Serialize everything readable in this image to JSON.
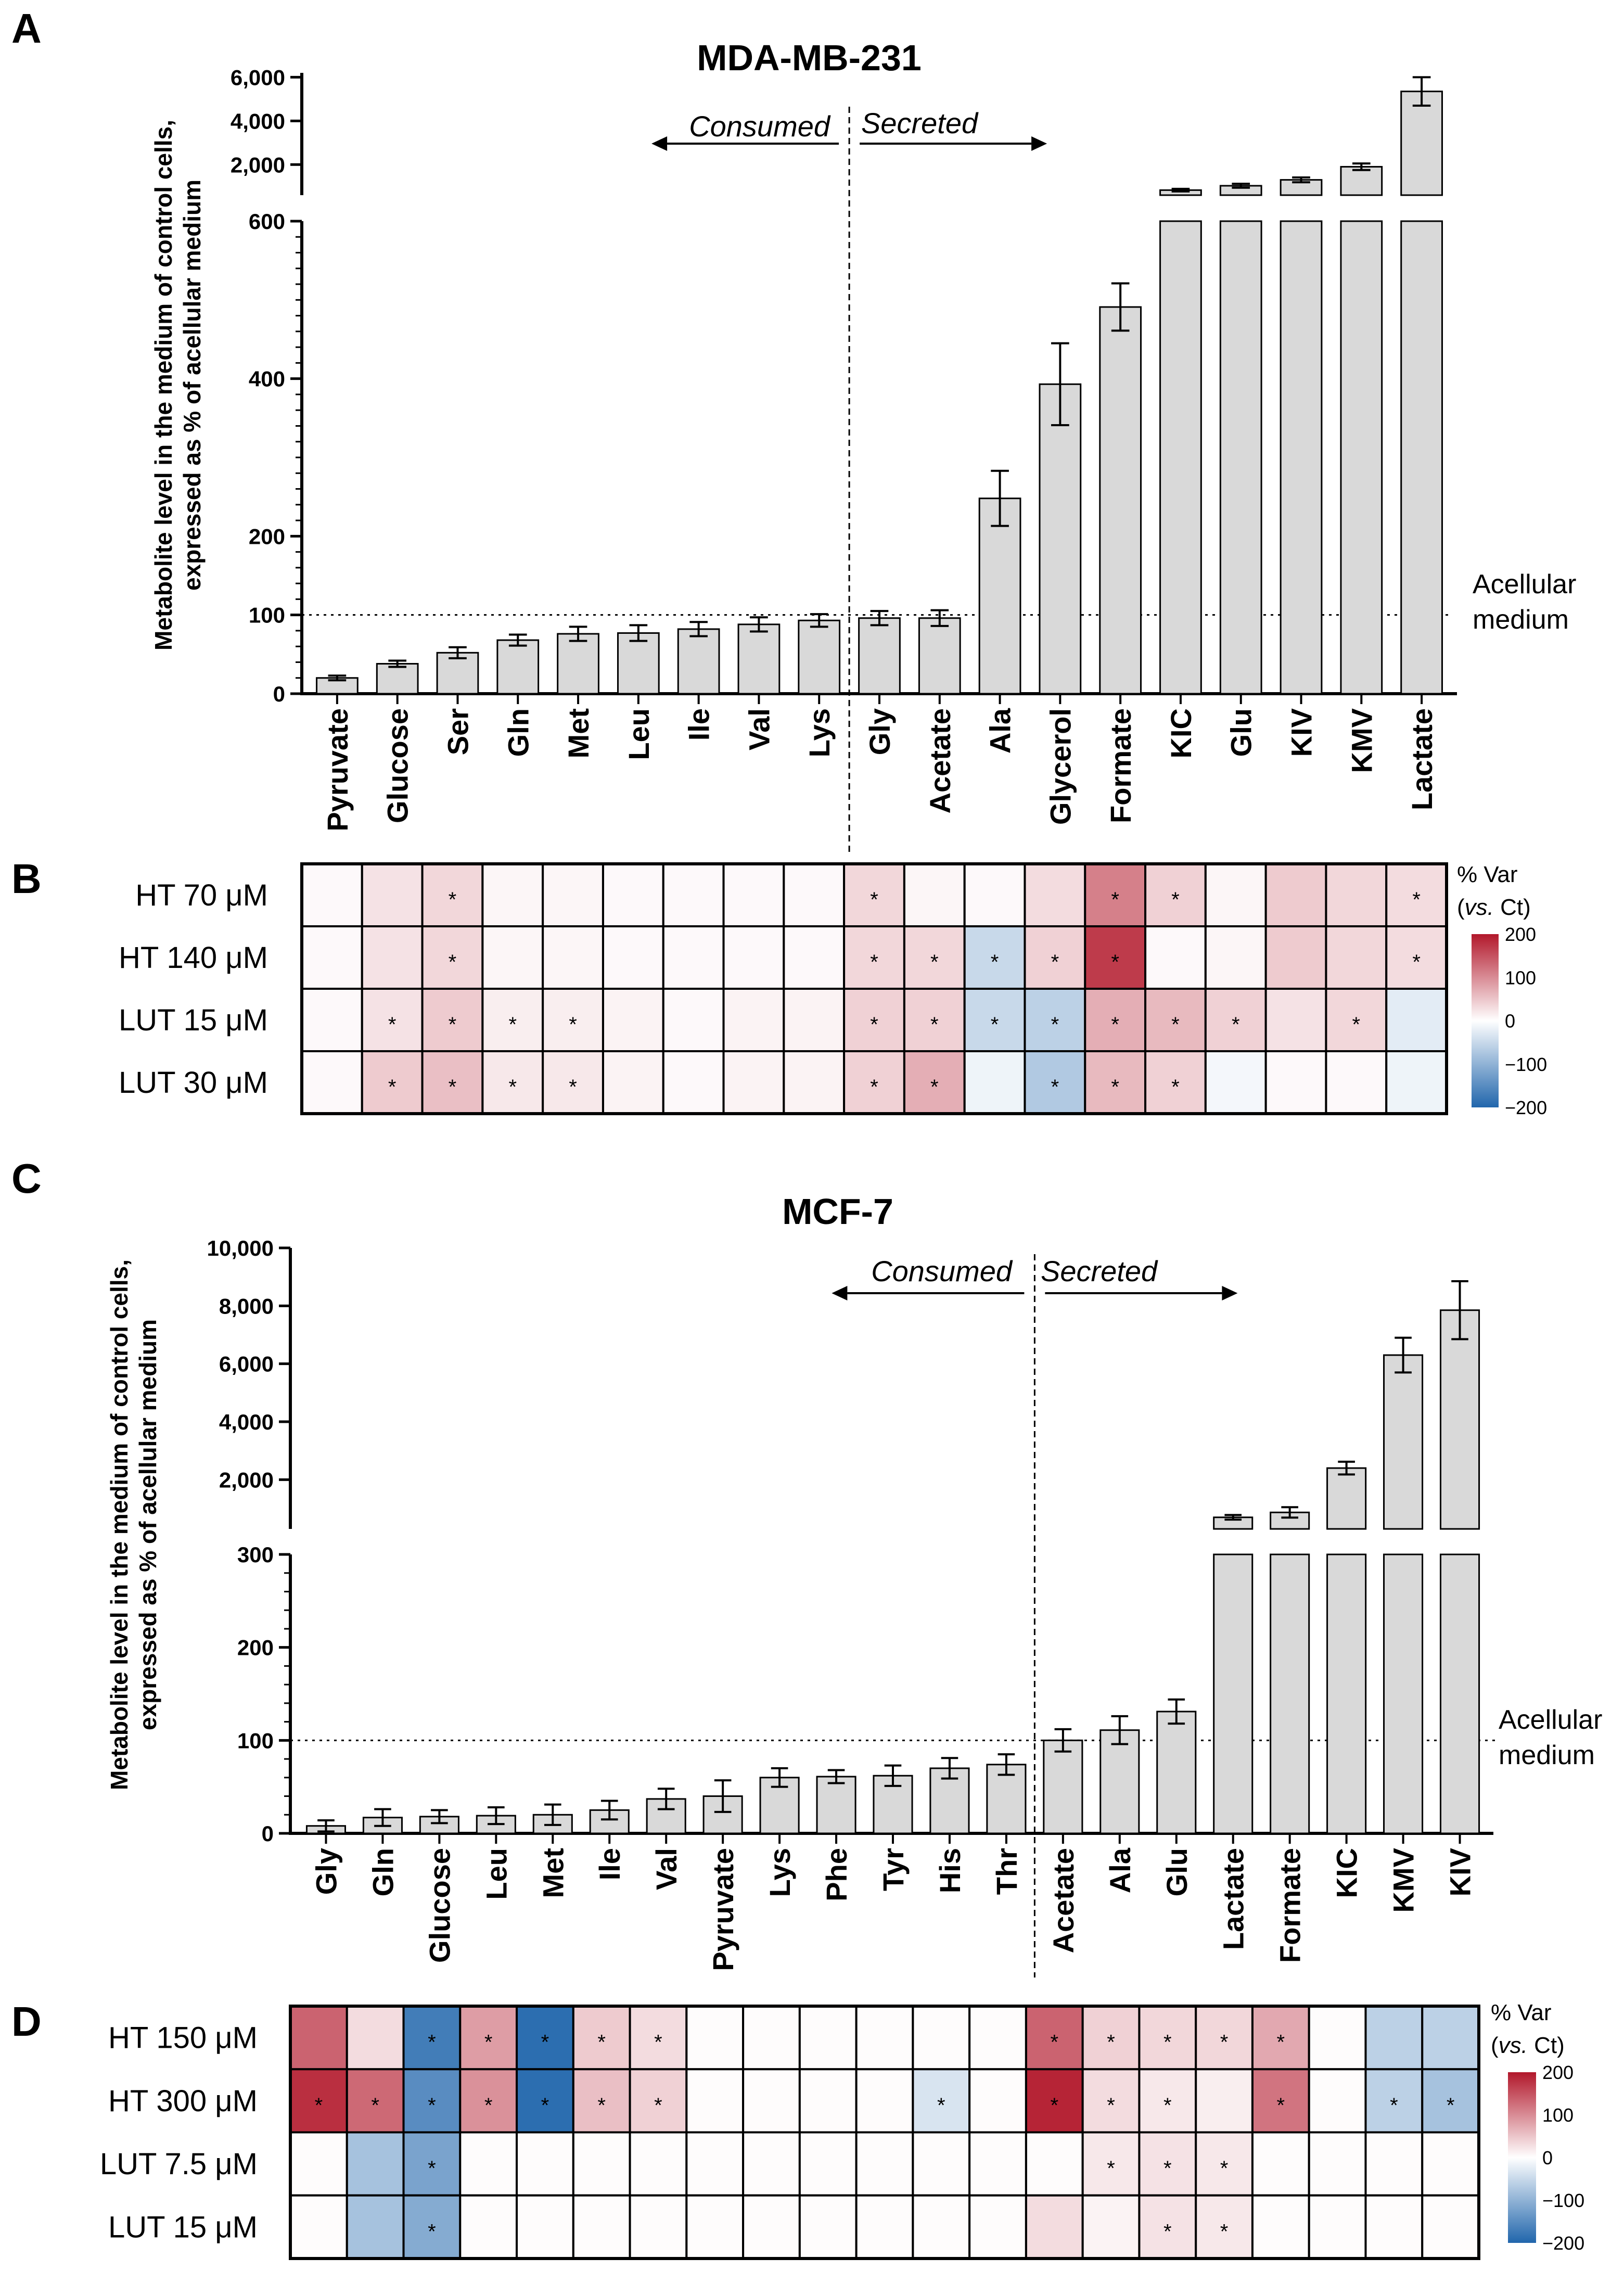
{
  "panel_labels": [
    "A",
    "B",
    "C",
    "D"
  ],
  "annotations": {
    "consumed": "Consumed",
    "secreted": "Secreted",
    "acellular_line1": "Acellular",
    "acellular_line2": "medium"
  },
  "heatmap_legend": {
    "title_line1": "% Var",
    "title_line2_italic": "vs.",
    "title_line2_rest": " Ct)",
    "title_line2_open": "(",
    "ticks": [
      "200",
      "100",
      "0",
      "−100",
      "−200"
    ],
    "tick_values": [
      200,
      100,
      0,
      -100,
      -200
    ],
    "color_high": "#b2182b",
    "color_mid": "#ffffff",
    "color_low": "#2166ac"
  },
  "chart_data": [
    {
      "type": "bar",
      "title": "MDA-MB-231",
      "ylabel_line1": "Metabolite level in the medium of control cells,",
      "ylabel_line2": "expressed as % of acellular medium",
      "categories": [
        "Pyruvate",
        "Glucose",
        "Ser",
        "Gln",
        "Met",
        "Leu",
        "Ile",
        "Val",
        "Lys",
        "Gly",
        "Acetate",
        "Ala",
        "Glycerol",
        "Formate",
        "KIC",
        "Glu",
        "KIV",
        "KMV",
        "Lactate"
      ],
      "values": [
        20,
        38,
        52,
        68,
        76,
        77,
        82,
        88,
        93,
        96,
        96,
        248,
        393,
        491,
        830,
        1030,
        1300,
        1900,
        5350
      ],
      "errors": [
        3,
        4,
        7,
        7,
        9,
        10,
        9,
        9,
        8,
        9,
        10,
        35,
        52,
        30,
        60,
        90,
        110,
        150,
        650
      ],
      "lower_axis": {
        "ylim": [
          0,
          600
        ],
        "ticks": [
          0,
          100,
          200,
          400,
          600
        ],
        "tick_labels": [
          "0",
          "100",
          "200",
          "400",
          "600"
        ]
      },
      "upper_axis": {
        "ylim": [
          600,
          6200
        ],
        "ticks": [
          2000,
          4000,
          6000
        ],
        "tick_labels": [
          "2,000",
          "4,000",
          "6,000"
        ]
      },
      "reference_line": 100,
      "consumed_secreted_divider_after": "Lys",
      "bar_color": "#d9d9d9"
    },
    {
      "type": "heatmap",
      "row_labels": [
        "HT 70 μM",
        "HT 140 μM",
        "LUT 15 μM",
        "LUT 30 μM"
      ],
      "columns": [
        "Pyruvate",
        "Glucose",
        "Ser",
        "Gln",
        "Met",
        "Leu",
        "Ile",
        "Val",
        "Lys",
        "Gly",
        "Acetate",
        "Ala",
        "Glycerol",
        "Formate",
        "KIC",
        "Glu",
        "KIV",
        "KMV",
        "Lactate"
      ],
      "values": [
        [
          5,
          25,
          35,
          8,
          8,
          5,
          5,
          5,
          5,
          35,
          8,
          5,
          30,
          110,
          40,
          8,
          45,
          35,
          30
        ],
        [
          5,
          25,
          35,
          8,
          8,
          5,
          5,
          5,
          5,
          35,
          35,
          -50,
          40,
          170,
          5,
          8,
          45,
          35,
          30
        ],
        [
          5,
          25,
          45,
          15,
          15,
          10,
          5,
          10,
          10,
          40,
          40,
          -50,
          -60,
          70,
          60,
          40,
          25,
          35,
          -25
        ],
        [
          5,
          45,
          55,
          20,
          20,
          10,
          5,
          10,
          10,
          40,
          70,
          -15,
          -70,
          60,
          40,
          -10,
          5,
          5,
          -15
        ]
      ],
      "significant": [
        [
          false,
          false,
          true,
          false,
          false,
          false,
          false,
          false,
          false,
          true,
          false,
          false,
          false,
          true,
          true,
          false,
          false,
          false,
          true
        ],
        [
          false,
          false,
          true,
          false,
          false,
          false,
          false,
          false,
          false,
          true,
          true,
          true,
          true,
          true,
          false,
          false,
          false,
          false,
          true
        ],
        [
          false,
          true,
          true,
          true,
          true,
          false,
          false,
          false,
          false,
          true,
          true,
          true,
          true,
          true,
          true,
          true,
          false,
          true,
          false
        ],
        [
          false,
          true,
          true,
          true,
          true,
          false,
          false,
          false,
          false,
          true,
          true,
          false,
          true,
          true,
          true,
          false,
          false,
          false,
          false
        ]
      ],
      "star_symbol": "*"
    },
    {
      "type": "bar",
      "title": "MCF-7",
      "ylabel_line1": "Metabolite level in the medium of control cells,",
      "ylabel_line2": "expressed as % of acellular medium",
      "categories": [
        "Gly",
        "Gln",
        "Glucose",
        "Leu",
        "Met",
        "Ile",
        "Val",
        "Pyruvate",
        "Lys",
        "Phe",
        "Tyr",
        "His",
        "Thr",
        "Acetate",
        "Ala",
        "Glu",
        "Lactate",
        "Formate",
        "KIC",
        "KMV",
        "KIV"
      ],
      "values": [
        8,
        17,
        18,
        19,
        20,
        25,
        37,
        40,
        60,
        61,
        62,
        70,
        74,
        100,
        111,
        131,
        700,
        870,
        2400,
        6300,
        7850
      ],
      "errors": [
        6,
        9,
        7,
        9,
        11,
        10,
        11,
        17,
        10,
        7,
        11,
        11,
        11,
        12,
        15,
        13,
        80,
        180,
        220,
        600,
        1000
      ],
      "lower_axis": {
        "ylim": [
          0,
          300
        ],
        "ticks": [
          0,
          100,
          200,
          300
        ],
        "tick_labels": [
          "0",
          "100",
          "200",
          "300"
        ]
      },
      "upper_axis": {
        "ylim": [
          300,
          10000
        ],
        "ticks": [
          2000,
          4000,
          6000,
          8000,
          10000
        ],
        "tick_labels": [
          "2,000",
          "4,000",
          "6,000",
          "8,000",
          "10,000"
        ]
      },
      "reference_line": 100,
      "consumed_secreted_divider_after": "Thr",
      "bar_color": "#d9d9d9"
    },
    {
      "type": "heatmap",
      "row_labels": [
        "HT 150 μM",
        "HT 300 μM",
        "LUT 7.5 μM",
        "LUT 15 μM"
      ],
      "columns": [
        "Gly",
        "Gln",
        "Glucose",
        "Leu",
        "Met",
        "Ile",
        "Val",
        "Pyruvate",
        "Lys",
        "Phe",
        "Tyr",
        "His",
        "Thr",
        "Acetate",
        "Ala",
        "Glu",
        "Lactate",
        "Formate",
        "KIC",
        "KMV",
        "KIV"
      ],
      "values": [
        [
          135,
          30,
          -170,
          85,
          -190,
          45,
          30,
          3,
          3,
          3,
          3,
          3,
          3,
          135,
          40,
          35,
          35,
          75,
          3,
          -60,
          -60
        ],
        [
          180,
          130,
          -150,
          95,
          -190,
          55,
          40,
          3,
          3,
          3,
          3,
          -35,
          3,
          190,
          30,
          20,
          15,
          120,
          3,
          -60,
          -80
        ],
        [
          3,
          -80,
          -120,
          3,
          3,
          3,
          3,
          3,
          3,
          3,
          3,
          3,
          3,
          3,
          20,
          25,
          20,
          3,
          3,
          3,
          3
        ],
        [
          3,
          -80,
          -110,
          3,
          3,
          3,
          3,
          3,
          3,
          3,
          3,
          3,
          3,
          30,
          10,
          25,
          20,
          3,
          3,
          3,
          3
        ]
      ],
      "significant": [
        [
          false,
          false,
          true,
          true,
          true,
          true,
          true,
          false,
          false,
          false,
          false,
          false,
          false,
          true,
          true,
          true,
          true,
          true,
          false,
          false,
          false
        ],
        [
          true,
          true,
          true,
          true,
          true,
          true,
          true,
          false,
          false,
          false,
          false,
          true,
          false,
          true,
          true,
          true,
          false,
          true,
          false,
          true,
          true
        ],
        [
          false,
          false,
          true,
          false,
          false,
          false,
          false,
          false,
          false,
          false,
          false,
          false,
          false,
          false,
          true,
          true,
          true,
          false,
          false,
          false,
          false
        ],
        [
          false,
          false,
          true,
          false,
          false,
          false,
          false,
          false,
          false,
          false,
          false,
          false,
          false,
          false,
          false,
          true,
          true,
          false,
          false,
          false,
          false
        ]
      ],
      "star_symbol": "*"
    }
  ]
}
